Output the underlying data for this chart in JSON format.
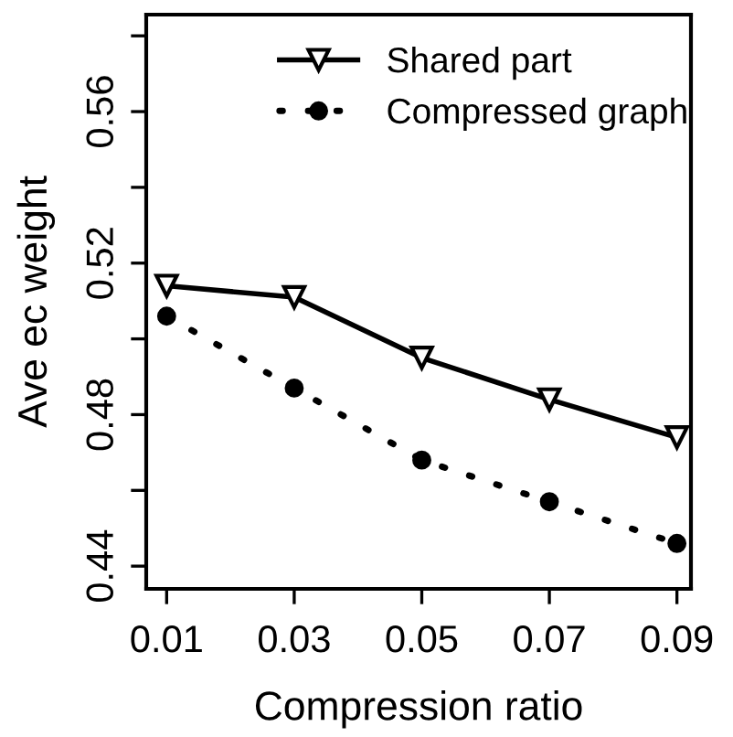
{
  "chart_data": {
    "type": "line",
    "xlabel": "Compression ratio",
    "ylabel": "Ave ec weight",
    "x": [
      0.01,
      0.03,
      0.05,
      0.07,
      0.09
    ],
    "series": [
      {
        "name": "Shared part",
        "color": "#000000",
        "marker": "triangle",
        "line_style": "solid",
        "values": [
          0.514,
          0.511,
          0.495,
          0.484,
          0.474
        ]
      },
      {
        "name": "Compressed graph",
        "color": "#000000",
        "marker": "circle",
        "line_style": "dotted",
        "values": [
          0.506,
          0.487,
          0.468,
          0.457,
          0.446
        ]
      }
    ],
    "xlim": [
      0.0068,
      0.0922
    ],
    "ylim": [
      0.434,
      0.5856
    ],
    "xticks": [
      0.01,
      0.03,
      0.05,
      0.07,
      0.09
    ],
    "yticks": [
      0.44,
      {
        "value": 0.46,
        "label": null
      },
      0.48,
      {
        "value": 0.5,
        "label": null
      },
      0.52,
      {
        "value": 0.54,
        "label": null
      },
      0.56,
      {
        "value": 0.58,
        "label": null
      }
    ],
    "grid": false,
    "legend": "top"
  }
}
